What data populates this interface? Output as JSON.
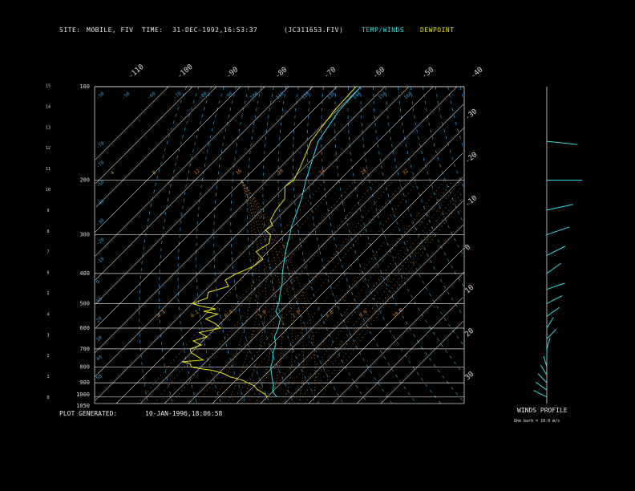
{
  "header": {
    "site_label": "SITE:",
    "site_value": "MOBILE, FIV",
    "time_label": "TIME:",
    "time_value": "31-DEC-1992,16:53:37",
    "file_value": "(JC311653.FIV)",
    "legend_temp": "TEMP/WINDS",
    "legend_dew": "DEWPOINT"
  },
  "footer": {
    "plot_label": "PLOT GENERATED:",
    "plot_value": "10-JAN-1996,18:06:58",
    "winds_title": "WINDS PROFILE",
    "winds_note": "One barb = 10.0 m/s"
  },
  "colors": {
    "temperature": "#2fe0e0",
    "dewpoint": "#e8e800",
    "isobar": "#d8d8d8",
    "isotherm": "#d8d8d8",
    "axes": "#d8d8d8",
    "mixing_ratio": "#d88a30",
    "moist_adiabat": "#d88a30",
    "dry_adiabat": "#3a9ad8"
  },
  "chart_data": {
    "type": "line",
    "pressure_labels": [
      "100",
      "200",
      "300",
      "400",
      "500",
      "600",
      "700",
      "800",
      "900",
      "1000",
      "1050"
    ],
    "height_km_labels": [
      "0",
      "1",
      "2",
      "3",
      "4",
      "5",
      "6",
      "7",
      "8",
      "9",
      "10",
      "11",
      "12",
      "13",
      "14",
      "15"
    ],
    "top_temperature_labels": [
      "-110",
      "-100",
      "-90",
      "-80",
      "-70",
      "-60",
      "-50",
      "-40"
    ],
    "right_temperature_labels": [
      "-30",
      "-20",
      "-10",
      "0",
      "10",
      "20",
      "30"
    ],
    "dry_adiabat_labels": [
      "-50",
      "-50",
      "-60",
      "-70",
      "-80",
      "-90",
      "100",
      "110",
      "120",
      "130",
      "140",
      "150",
      "160",
      "-70",
      "-70",
      "-50",
      "-40",
      "-30",
      "-20",
      "-10",
      "0",
      "10",
      "20",
      "30",
      "40",
      "50"
    ],
    "mixing_ratio_labels": [
      "4",
      "8",
      "12",
      "16",
      "20",
      "24",
      "28",
      "32",
      "0.1",
      "0.2",
      "0.4",
      "1.0",
      "2.0",
      "3.0",
      "5.0",
      "10.0"
    ],
    "series": [
      {
        "name": "TEMP/WINDS",
        "points": [
          [
            100,
            -80
          ],
          [
            120,
            -79
          ],
          [
            150,
            -75
          ],
          [
            180,
            -68
          ],
          [
            200,
            -64
          ],
          [
            230,
            -58
          ],
          [
            250,
            -55
          ],
          [
            280,
            -51
          ],
          [
            300,
            -48
          ],
          [
            330,
            -44
          ],
          [
            360,
            -40
          ],
          [
            400,
            -35
          ],
          [
            430,
            -31
          ],
          [
            460,
            -28
          ],
          [
            500,
            -24
          ],
          [
            530,
            -22
          ],
          [
            560,
            -17
          ],
          [
            600,
            -14
          ],
          [
            640,
            -12
          ],
          [
            680,
            -8
          ],
          [
            720,
            -6
          ],
          [
            760,
            -3
          ],
          [
            800,
            -1
          ],
          [
            840,
            2
          ],
          [
            880,
            5
          ],
          [
            920,
            8
          ],
          [
            960,
            10
          ],
          [
            1000,
            14
          ]
        ]
      },
      {
        "name": "DEWPOINT",
        "points": [
          [
            100,
            -82
          ],
          [
            120,
            -81
          ],
          [
            150,
            -78
          ],
          [
            180,
            -72
          ],
          [
            200,
            -69
          ],
          [
            210,
            -70
          ],
          [
            230,
            -65
          ],
          [
            250,
            -64
          ],
          [
            270,
            -62
          ],
          [
            280,
            -59
          ],
          [
            290,
            -60
          ],
          [
            300,
            -56
          ],
          [
            320,
            -53
          ],
          [
            340,
            -55
          ],
          [
            350,
            -52
          ],
          [
            360,
            -49
          ],
          [
            380,
            -50
          ],
          [
            400,
            -54
          ],
          [
            420,
            -56
          ],
          [
            440,
            -52
          ],
          [
            460,
            -58
          ],
          [
            480,
            -56
          ],
          [
            500,
            -60
          ],
          [
            510,
            -55
          ],
          [
            520,
            -48
          ],
          [
            530,
            -52
          ],
          [
            540,
            -45
          ],
          [
            560,
            -48
          ],
          [
            580,
            -42
          ],
          [
            600,
            -38
          ],
          [
            620,
            -45
          ],
          [
            640,
            -40
          ],
          [
            660,
            -44
          ],
          [
            680,
            -39
          ],
          [
            700,
            -42
          ],
          [
            720,
            -40
          ],
          [
            740,
            -36
          ],
          [
            760,
            -32
          ],
          [
            770,
            -40
          ],
          [
            780,
            -36
          ],
          [
            800,
            -34
          ],
          [
            810,
            -30
          ],
          [
            820,
            -24
          ],
          [
            840,
            -18
          ],
          [
            860,
            -14
          ],
          [
            880,
            -8
          ],
          [
            900,
            -4
          ],
          [
            920,
            0
          ],
          [
            940,
            2
          ],
          [
            960,
            5
          ],
          [
            980,
            8
          ],
          [
            1000,
            10
          ]
        ]
      }
    ],
    "winds": [
      {
        "p": 150,
        "dir": 280,
        "spd": 38
      },
      {
        "p": 200,
        "dir": 270,
        "spd": 48
      },
      {
        "p": 250,
        "dir": 250,
        "spd": 30
      },
      {
        "p": 300,
        "dir": 240,
        "spd": 25
      },
      {
        "p": 350,
        "dir": 230,
        "spd": 20
      },
      {
        "p": 400,
        "dir": 220,
        "spd": 15
      },
      {
        "p": 450,
        "dir": 240,
        "spd": 12
      },
      {
        "p": 500,
        "dir": 230,
        "spd": 10
      },
      {
        "p": 550,
        "dir": 220,
        "spd": 9
      },
      {
        "p": 600,
        "dir": 200,
        "spd": 8
      },
      {
        "p": 650,
        "dir": 210,
        "spd": 7
      },
      {
        "p": 700,
        "dir": 190,
        "spd": 6
      },
      {
        "p": 750,
        "dir": 180,
        "spd": 5
      },
      {
        "p": 800,
        "dir": 170,
        "spd": 5
      },
      {
        "p": 850,
        "dir": 160,
        "spd": 4
      },
      {
        "p": 900,
        "dir": 150,
        "spd": 4
      },
      {
        "p": 950,
        "dir": 140,
        "spd": 3
      },
      {
        "p": 1000,
        "dir": 130,
        "spd": 3
      }
    ]
  }
}
